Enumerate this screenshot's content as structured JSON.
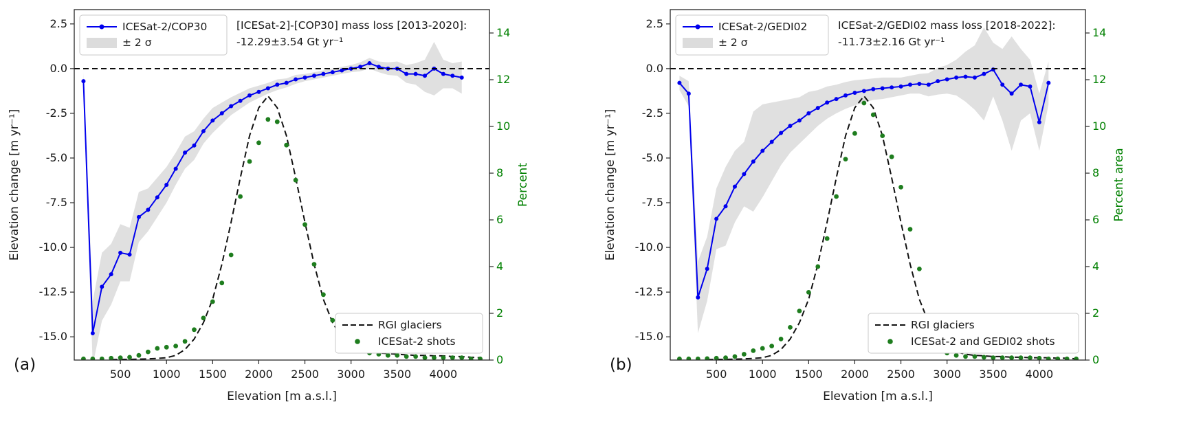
{
  "colors": {
    "line": "#0000ee",
    "band": "#d8d8d8",
    "scatter": "#1e7d1e",
    "right_axis": "#008000",
    "dashed": "#111111",
    "axis": "#262626",
    "zero_line": "#000000",
    "legend_border": "#c8c8c8"
  },
  "chart_data": [
    {
      "type": "line+scatter",
      "panel_id": "a",
      "panel_letter": "(a)",
      "annotation_line1": "[ICESat-2]-[COP30] mass loss [2013-2020]:",
      "annotation_line2": "-12.29±3.54 Gt yr⁻¹",
      "band_label": "± 2 σ",
      "xlabel": "Elevation [m a.s.l.]",
      "ylabel_left": "Elevation change [m yr⁻¹]",
      "ylabel_right": "Percent",
      "xlim": [
        0,
        4500
      ],
      "ylim_left": [
        -16.3,
        3.3
      ],
      "ylim_right": [
        0,
        15
      ],
      "xticks": [
        500,
        1000,
        1500,
        2000,
        2500,
        3000,
        3500,
        4000
      ],
      "yticks_left": [
        2.5,
        0.0,
        -2.5,
        -5.0,
        -7.5,
        -10.0,
        -12.5,
        -15.0
      ],
      "yticks_right": [
        0,
        2,
        4,
        6,
        8,
        10,
        12,
        14
      ],
      "zero_line_value": 0,
      "grid": false,
      "legend_top_position": "upper left",
      "legend_bottom_position": "lower right",
      "series": {
        "elevation_change": {
          "name": "ICESat-2/COP30",
          "axis": "left",
          "x": [
            100,
            200,
            300,
            400,
            500,
            600,
            700,
            800,
            900,
            1000,
            1100,
            1200,
            1300,
            1400,
            1500,
            1600,
            1700,
            1800,
            1900,
            2000,
            2100,
            2200,
            2300,
            2400,
            2500,
            2600,
            2700,
            2800,
            2900,
            3000,
            3100,
            3200,
            3300,
            3400,
            3500,
            3600,
            3700,
            3800,
            3900,
            4000,
            4100,
            4200
          ],
          "y": [
            -0.7,
            -14.8,
            -12.2,
            -11.5,
            -10.3,
            -10.4,
            -8.3,
            -7.9,
            -7.2,
            -6.5,
            -5.6,
            -4.7,
            -4.3,
            -3.5,
            -2.9,
            -2.5,
            -2.1,
            -1.8,
            -1.5,
            -1.3,
            -1.1,
            -0.9,
            -0.8,
            -0.6,
            -0.5,
            -0.4,
            -0.3,
            -0.2,
            -0.1,
            0.0,
            0.1,
            0.3,
            0.1,
            0.0,
            0.0,
            -0.3,
            -0.3,
            -0.4,
            0.0,
            -0.3,
            -0.4,
            -0.5
          ],
          "band_halfwidth": [
            0.5,
            1.8,
            1.9,
            1.7,
            1.6,
            1.5,
            1.4,
            1.2,
            1.1,
            1.0,
            0.9,
            0.9,
            0.8,
            0.7,
            0.7,
            0.6,
            0.5,
            0.45,
            0.4,
            0.35,
            0.3,
            0.3,
            0.25,
            0.25,
            0.2,
            0.2,
            0.2,
            0.2,
            0.2,
            0.2,
            0.25,
            0.3,
            0.3,
            0.35,
            0.4,
            0.5,
            0.6,
            0.9,
            1.5,
            0.8,
            0.7,
            0.9
          ]
        },
        "rgi_glaciers": {
          "name": "RGI glaciers",
          "axis": "right",
          "x": [
            400,
            500,
            600,
            700,
            800,
            900,
            1000,
            1100,
            1200,
            1300,
            1400,
            1500,
            1600,
            1700,
            1800,
            1900,
            2000,
            2100,
            2200,
            2300,
            2400,
            2500,
            2600,
            2700,
            2800,
            2900,
            3000,
            3100,
            3200,
            3300,
            3400,
            3500,
            3600,
            3700,
            3800,
            3900,
            4000,
            4100,
            4200,
            4300,
            4400
          ],
          "y": [
            0.02,
            0.03,
            0.03,
            0.04,
            0.05,
            0.07,
            0.1,
            0.2,
            0.45,
            0.9,
            1.6,
            2.6,
            4.1,
            5.9,
            7.8,
            9.6,
            10.8,
            11.3,
            10.8,
            9.6,
            7.8,
            5.9,
            4.1,
            2.6,
            1.6,
            0.95,
            0.6,
            0.45,
            0.35,
            0.3,
            0.28,
            0.25,
            0.22,
            0.2,
            0.2,
            0.18,
            0.18,
            0.15,
            0.15,
            0.12,
            0.1
          ]
        },
        "shots": {
          "name": "ICESat-2 shots",
          "axis": "right",
          "x": [
            100,
            200,
            300,
            400,
            500,
            600,
            700,
            800,
            900,
            1000,
            1100,
            1200,
            1300,
            1400,
            1500,
            1600,
            1700,
            1800,
            1900,
            2000,
            2100,
            2200,
            2300,
            2400,
            2500,
            2600,
            2700,
            2800,
            2900,
            3000,
            3100,
            3200,
            3300,
            3400,
            3500,
            3600,
            3700,
            3800,
            3900,
            4000,
            4100,
            4200,
            4300,
            4400
          ],
          "y": [
            0.05,
            0.05,
            0.05,
            0.08,
            0.1,
            0.12,
            0.2,
            0.35,
            0.5,
            0.55,
            0.6,
            0.8,
            1.3,
            1.8,
            2.5,
            3.3,
            4.5,
            7.0,
            8.5,
            9.3,
            10.3,
            10.2,
            9.2,
            7.7,
            5.8,
            4.1,
            2.8,
            1.7,
            1.0,
            0.6,
            0.4,
            0.3,
            0.25,
            0.2,
            0.2,
            0.15,
            0.15,
            0.1,
            0.1,
            0.1,
            0.1,
            0.1,
            0.05,
            0.05
          ]
        }
      }
    },
    {
      "type": "line+scatter",
      "panel_id": "b",
      "panel_letter": "(b)",
      "annotation_line1": "ICESat-2/GEDI02 mass loss [2018-2022]:",
      "annotation_line2": "-11.73±2.16 Gt yr⁻¹",
      "band_label": "± 2 σ",
      "xlabel": "Elevation [m a.s.l.]",
      "ylabel_left": "Elevation change [m yr⁻¹]",
      "ylabel_right": "Percent area",
      "xlim": [
        0,
        4500
      ],
      "ylim_left": [
        -16.3,
        3.3
      ],
      "ylim_right": [
        0,
        15
      ],
      "xticks": [
        500,
        1000,
        1500,
        2000,
        2500,
        3000,
        3500,
        4000
      ],
      "yticks_left": [
        2.5,
        0.0,
        -2.5,
        -5.0,
        -7.5,
        -10.0,
        -12.5,
        -15.0
      ],
      "yticks_right": [
        0,
        2,
        4,
        6,
        8,
        10,
        12,
        14
      ],
      "zero_line_value": 0,
      "grid": false,
      "legend_top_position": "upper left",
      "legend_bottom_position": "lower right",
      "series": {
        "elevation_change": {
          "name": "ICESat-2/GEDI02",
          "axis": "left",
          "x": [
            100,
            200,
            300,
            400,
            500,
            600,
            700,
            800,
            900,
            1000,
            1100,
            1200,
            1300,
            1400,
            1500,
            1600,
            1700,
            1800,
            1900,
            2000,
            2100,
            2200,
            2300,
            2400,
            2500,
            2600,
            2700,
            2800,
            2900,
            3000,
            3100,
            3200,
            3300,
            3400,
            3500,
            3600,
            3700,
            3800,
            3900,
            4000,
            4100
          ],
          "y": [
            -0.8,
            -1.4,
            -12.8,
            -11.2,
            -8.4,
            -7.7,
            -6.6,
            -5.9,
            -5.2,
            -4.6,
            -4.1,
            -3.6,
            -3.2,
            -2.9,
            -2.5,
            -2.2,
            -1.9,
            -1.7,
            -1.5,
            -1.35,
            -1.25,
            -1.15,
            -1.1,
            -1.05,
            -1.0,
            -0.9,
            -0.85,
            -0.9,
            -0.7,
            -0.6,
            -0.5,
            -0.45,
            -0.5,
            -0.3,
            -0.05,
            -0.9,
            -1.4,
            -0.9,
            -1.0,
            -3.0,
            -0.8
          ],
          "band_halfwidth": [
            0.4,
            0.7,
            2.0,
            1.8,
            1.7,
            2.2,
            2.0,
            1.8,
            2.8,
            2.6,
            2.2,
            1.8,
            1.5,
            1.3,
            1.2,
            1.0,
            0.9,
            0.8,
            0.75,
            0.7,
            0.65,
            0.6,
            0.6,
            0.55,
            0.5,
            0.5,
            0.55,
            0.65,
            0.75,
            0.8,
            1.0,
            1.4,
            1.8,
            2.6,
            1.5,
            2.0,
            3.2,
            2.0,
            1.5,
            1.6,
            1.2
          ]
        },
        "rgi_glaciers": {
          "name": "RGI glaciers",
          "axis": "right",
          "x": [
            400,
            500,
            600,
            700,
            800,
            900,
            1000,
            1100,
            1200,
            1300,
            1400,
            1500,
            1600,
            1700,
            1800,
            1900,
            2000,
            2100,
            2200,
            2300,
            2400,
            2500,
            2600,
            2700,
            2800,
            2900,
            3000,
            3100,
            3200,
            3300,
            3400,
            3500,
            3600,
            3700,
            3800,
            3900,
            4000,
            4100,
            4200,
            4300,
            4400
          ],
          "y": [
            0.02,
            0.03,
            0.03,
            0.04,
            0.05,
            0.07,
            0.1,
            0.2,
            0.45,
            0.9,
            1.6,
            2.6,
            4.1,
            5.9,
            7.8,
            9.6,
            10.8,
            11.3,
            10.8,
            9.6,
            7.8,
            5.9,
            4.1,
            2.6,
            1.6,
            0.95,
            0.55,
            0.35,
            0.25,
            0.2,
            0.18,
            0.15,
            0.15,
            0.12,
            0.12,
            0.1,
            0.1,
            0.1,
            0.08,
            0.08,
            0.05
          ]
        },
        "shots": {
          "name": "ICESat-2 and GEDI02 shots",
          "axis": "right",
          "x": [
            100,
            200,
            300,
            400,
            500,
            600,
            700,
            800,
            900,
            1000,
            1100,
            1200,
            1300,
            1400,
            1500,
            1600,
            1700,
            1800,
            1900,
            2000,
            2100,
            2200,
            2300,
            2400,
            2500,
            2600,
            2700,
            2800,
            2900,
            3000,
            3100,
            3200,
            3300,
            3400,
            3500,
            3600,
            3700,
            3800,
            3900,
            4000,
            4100,
            4200,
            4300,
            4400
          ],
          "y": [
            0.05,
            0.05,
            0.05,
            0.06,
            0.08,
            0.1,
            0.15,
            0.25,
            0.4,
            0.5,
            0.6,
            0.9,
            1.4,
            2.1,
            2.9,
            4.0,
            5.2,
            7.0,
            8.6,
            9.7,
            11.0,
            10.5,
            9.6,
            8.7,
            7.4,
            5.6,
            3.9,
            1.8,
            0.6,
            0.3,
            0.2,
            0.15,
            0.15,
            0.12,
            0.1,
            0.1,
            0.1,
            0.1,
            0.1,
            0.08,
            0.05,
            0.05,
            0.05,
            0.05
          ]
        }
      }
    }
  ]
}
